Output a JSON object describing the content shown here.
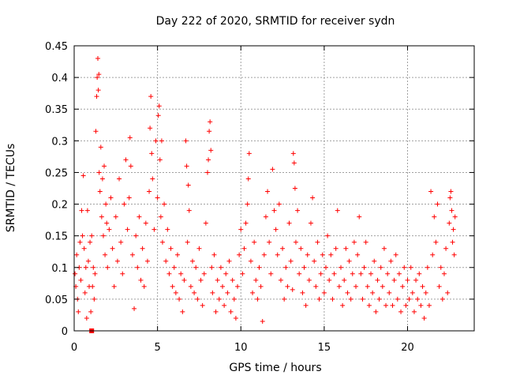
{
  "chart_data": {
    "type": "scatter",
    "title": "Day 222 of 2020, SRMTID for receiver sydn",
    "xlabel": "GPS time / hours",
    "ylabel": "SRMTID / TECUs",
    "xlim": [
      0,
      24
    ],
    "ylim": [
      0,
      0.45
    ],
    "x_ticks": [
      0,
      5,
      10,
      15,
      20
    ],
    "x_tick_labels": [
      "0",
      "5",
      "10",
      "15",
      "20"
    ],
    "y_ticks": [
      0,
      0.05,
      0.1,
      0.15,
      0.2,
      0.25,
      0.3,
      0.35,
      0.4,
      0.45
    ],
    "y_tick_labels": [
      "0",
      "0.05",
      "0.1",
      "0.15",
      "0.2",
      "0.25",
      "0.3",
      "0.35",
      "0.4",
      "0.45"
    ],
    "grid": true,
    "marker": "plus",
    "marker_color": "#ff0000",
    "series": [
      {
        "name": "SRMTID",
        "points": [
          [
            0.05,
            0.09
          ],
          [
            0.1,
            0.07
          ],
          [
            0.15,
            0.12
          ],
          [
            0.2,
            0.05
          ],
          [
            0.25,
            0.03
          ],
          [
            0.3,
            0.1
          ],
          [
            0.35,
            0.14
          ],
          [
            0.4,
            0.08
          ],
          [
            0.45,
            0.19
          ],
          [
            0.5,
            0.15
          ],
          [
            0.55,
            0.245
          ],
          [
            0.6,
            0.13
          ],
          [
            0.65,
            0.06
          ],
          [
            0.7,
            0.1
          ],
          [
            0.75,
            0.02
          ],
          [
            0.8,
            0.19
          ],
          [
            0.85,
            0.11
          ],
          [
            0.9,
            0.07
          ],
          [
            0.95,
            0.14
          ],
          [
            1.0,
            0.03
          ],
          [
            1.05,
            0.15
          ],
          [
            1.1,
            0.07
          ],
          [
            1.15,
            0.1
          ],
          [
            1.2,
            0.05
          ],
          [
            1.25,
            0.09
          ],
          [
            1.3,
            0.315
          ],
          [
            1.35,
            0.37
          ],
          [
            1.38,
            0.4
          ],
          [
            1.42,
            0.43
          ],
          [
            1.45,
            0.38
          ],
          [
            1.48,
            0.405
          ],
          [
            1.5,
            0.25
          ],
          [
            1.55,
            0.22
          ],
          [
            1.6,
            0.29
          ],
          [
            1.65,
            0.18
          ],
          [
            1.7,
            0.24
          ],
          [
            1.75,
            0.15
          ],
          [
            1.8,
            0.26
          ],
          [
            1.85,
            0.12
          ],
          [
            1.9,
            0.2
          ],
          [
            1.95,
            0.17
          ],
          [
            2.0,
            0.1
          ],
          [
            2.1,
            0.16
          ],
          [
            2.2,
            0.21
          ],
          [
            2.3,
            0.13
          ],
          [
            2.4,
            0.07
          ],
          [
            2.5,
            0.18
          ],
          [
            2.6,
            0.11
          ],
          [
            2.7,
            0.24
          ],
          [
            2.8,
            0.14
          ],
          [
            2.9,
            0.09
          ],
          [
            3.0,
            0.2
          ],
          [
            3.1,
            0.27
          ],
          [
            3.2,
            0.16
          ],
          [
            3.3,
            0.21
          ],
          [
            3.35,
            0.305
          ],
          [
            3.4,
            0.26
          ],
          [
            3.5,
            0.12
          ],
          [
            3.6,
            0.035
          ],
          [
            3.7,
            0.15
          ],
          [
            3.8,
            0.1
          ],
          [
            3.9,
            0.18
          ],
          [
            4.0,
            0.08
          ],
          [
            4.1,
            0.13
          ],
          [
            4.2,
            0.07
          ],
          [
            4.3,
            0.17
          ],
          [
            4.4,
            0.11
          ],
          [
            4.5,
            0.22
          ],
          [
            4.55,
            0.32
          ],
          [
            4.6,
            0.37
          ],
          [
            4.65,
            0.28
          ],
          [
            4.7,
            0.24
          ],
          [
            4.8,
            0.16
          ],
          [
            4.9,
            0.3
          ],
          [
            5.0,
            0.21
          ],
          [
            5.05,
            0.34
          ],
          [
            5.1,
            0.355
          ],
          [
            5.15,
            0.27
          ],
          [
            5.2,
            0.18
          ],
          [
            5.25,
            0.3
          ],
          [
            5.3,
            0.14
          ],
          [
            5.4,
            0.2
          ],
          [
            5.5,
            0.11
          ],
          [
            5.6,
            0.16
          ],
          [
            5.7,
            0.09
          ],
          [
            5.8,
            0.13
          ],
          [
            5.9,
            0.07
          ],
          [
            6.0,
            0.1
          ],
          [
            6.1,
            0.06
          ],
          [
            6.2,
            0.12
          ],
          [
            6.3,
            0.05
          ],
          [
            6.4,
            0.09
          ],
          [
            6.5,
            0.03
          ],
          [
            6.6,
            0.08
          ],
          [
            6.7,
            0.3
          ],
          [
            6.75,
            0.26
          ],
          [
            6.8,
            0.14
          ],
          [
            6.85,
            0.23
          ],
          [
            6.9,
            0.19
          ],
          [
            7.0,
            0.07
          ],
          [
            7.1,
            0.11
          ],
          [
            7.2,
            0.06
          ],
          [
            7.3,
            0.1
          ],
          [
            7.4,
            0.05
          ],
          [
            7.5,
            0.13
          ],
          [
            7.6,
            0.08
          ],
          [
            7.7,
            0.04
          ],
          [
            7.8,
            0.09
          ],
          [
            7.9,
            0.17
          ],
          [
            8.0,
            0.25
          ],
          [
            8.05,
            0.27
          ],
          [
            8.1,
            0.315
          ],
          [
            8.15,
            0.33
          ],
          [
            8.2,
            0.285
          ],
          [
            8.25,
            0.1
          ],
          [
            8.3,
            0.06
          ],
          [
            8.4,
            0.12
          ],
          [
            8.5,
            0.03
          ],
          [
            8.6,
            0.08
          ],
          [
            8.7,
            0.05
          ],
          [
            8.8,
            0.1
          ],
          [
            8.9,
            0.07
          ],
          [
            9.0,
            0.04
          ],
          [
            9.1,
            0.09
          ],
          [
            9.2,
            0.06
          ],
          [
            9.3,
            0.11
          ],
          [
            9.4,
            0.03
          ],
          [
            9.5,
            0.08
          ],
          [
            9.6,
            0.05
          ],
          [
            9.7,
            0.02
          ],
          [
            9.8,
            0.07
          ],
          [
            9.9,
            0.12
          ],
          [
            10.0,
            0.16
          ],
          [
            10.1,
            0.09
          ],
          [
            10.2,
            0.13
          ],
          [
            10.3,
            0.17
          ],
          [
            10.4,
            0.2
          ],
          [
            10.45,
            0.24
          ],
          [
            10.5,
            0.28
          ],
          [
            10.6,
            0.11
          ],
          [
            10.7,
            0.06
          ],
          [
            10.8,
            0.14
          ],
          [
            10.9,
            0.08
          ],
          [
            11.0,
            0.05
          ],
          [
            11.1,
            0.1
          ],
          [
            11.2,
            0.07
          ],
          [
            11.3,
            0.015
          ],
          [
            11.4,
            0.12
          ],
          [
            11.5,
            0.18
          ],
          [
            11.6,
            0.22
          ],
          [
            11.7,
            0.14
          ],
          [
            11.8,
            0.09
          ],
          [
            11.9,
            0.255
          ],
          [
            12.0,
            0.19
          ],
          [
            12.1,
            0.16
          ],
          [
            12.2,
            0.12
          ],
          [
            12.3,
            0.2
          ],
          [
            12.4,
            0.08
          ],
          [
            12.5,
            0.13
          ],
          [
            12.6,
            0.05
          ],
          [
            12.7,
            0.1
          ],
          [
            12.8,
            0.07
          ],
          [
            12.9,
            0.17
          ],
          [
            13.0,
            0.11
          ],
          [
            13.1,
            0.065
          ],
          [
            13.15,
            0.28
          ],
          [
            13.2,
            0.265
          ],
          [
            13.25,
            0.225
          ],
          [
            13.3,
            0.14
          ],
          [
            13.4,
            0.19
          ],
          [
            13.5,
            0.09
          ],
          [
            13.6,
            0.13
          ],
          [
            13.7,
            0.06
          ],
          [
            13.8,
            0.1
          ],
          [
            13.9,
            0.04
          ],
          [
            14.0,
            0.12
          ],
          [
            14.1,
            0.08
          ],
          [
            14.2,
            0.17
          ],
          [
            14.3,
            0.21
          ],
          [
            14.4,
            0.11
          ],
          [
            14.5,
            0.07
          ],
          [
            14.6,
            0.14
          ],
          [
            14.7,
            0.05
          ],
          [
            14.8,
            0.09
          ],
          [
            14.9,
            0.12
          ],
          [
            15.0,
            0.06
          ],
          [
            15.1,
            0.1
          ],
          [
            15.2,
            0.15
          ],
          [
            15.3,
            0.08
          ],
          [
            15.4,
            0.12
          ],
          [
            15.5,
            0.05
          ],
          [
            15.6,
            0.09
          ],
          [
            15.7,
            0.13
          ],
          [
            15.8,
            0.19
          ],
          [
            15.9,
            0.07
          ],
          [
            16.0,
            0.1
          ],
          [
            16.1,
            0.04
          ],
          [
            16.2,
            0.08
          ],
          [
            16.3,
            0.13
          ],
          [
            16.4,
            0.06
          ],
          [
            16.5,
            0.11
          ],
          [
            16.6,
            0.05
          ],
          [
            16.7,
            0.09
          ],
          [
            16.8,
            0.14
          ],
          [
            16.9,
            0.07
          ],
          [
            17.0,
            0.12
          ],
          [
            17.1,
            0.18
          ],
          [
            17.2,
            0.09
          ],
          [
            17.3,
            0.05
          ],
          [
            17.4,
            0.1
          ],
          [
            17.5,
            0.14
          ],
          [
            17.6,
            0.07
          ],
          [
            17.7,
            0.04
          ],
          [
            17.8,
            0.09
          ],
          [
            17.9,
            0.06
          ],
          [
            18.0,
            0.11
          ],
          [
            18.1,
            0.03
          ],
          [
            18.2,
            0.08
          ],
          [
            18.3,
            0.05
          ],
          [
            18.4,
            0.1
          ],
          [
            18.5,
            0.07
          ],
          [
            18.6,
            0.13
          ],
          [
            18.7,
            0.04
          ],
          [
            18.8,
            0.09
          ],
          [
            18.9,
            0.06
          ],
          [
            19.0,
            0.11
          ],
          [
            19.1,
            0.04
          ],
          [
            19.2,
            0.08
          ],
          [
            19.3,
            0.12
          ],
          [
            19.4,
            0.05
          ],
          [
            19.5,
            0.09
          ],
          [
            19.6,
            0.03
          ],
          [
            19.7,
            0.07
          ],
          [
            19.8,
            0.1
          ],
          [
            19.9,
            0.04
          ],
          [
            20.0,
            0.08
          ],
          [
            20.1,
            0.05
          ],
          [
            20.2,
            0.1
          ],
          [
            20.3,
            0.06
          ],
          [
            20.4,
            0.03
          ],
          [
            20.5,
            0.08
          ],
          [
            20.6,
            0.05
          ],
          [
            20.7,
            0.09
          ],
          [
            20.8,
            0.04
          ],
          [
            20.9,
            0.07
          ],
          [
            21.0,
            0.02
          ],
          [
            21.1,
            0.06
          ],
          [
            21.2,
            0.1
          ],
          [
            21.3,
            0.04
          ],
          [
            21.4,
            0.22
          ],
          [
            21.5,
            0.12
          ],
          [
            21.6,
            0.18
          ],
          [
            21.7,
            0.14
          ],
          [
            21.8,
            0.2
          ],
          [
            21.9,
            0.07
          ],
          [
            22.0,
            0.1
          ],
          [
            22.1,
            0.05
          ],
          [
            22.2,
            0.09
          ],
          [
            22.3,
            0.13
          ],
          [
            22.4,
            0.06
          ],
          [
            22.5,
            0.17
          ],
          [
            22.55,
            0.21
          ],
          [
            22.6,
            0.22
          ],
          [
            22.65,
            0.19
          ],
          [
            22.7,
            0.14
          ],
          [
            22.75,
            0.16
          ],
          [
            22.8,
            0.12
          ],
          [
            22.85,
            0.18
          ]
        ]
      }
    ],
    "extra_marker": {
      "x": 1.05,
      "y": 0.0,
      "style": "filled-square"
    }
  }
}
